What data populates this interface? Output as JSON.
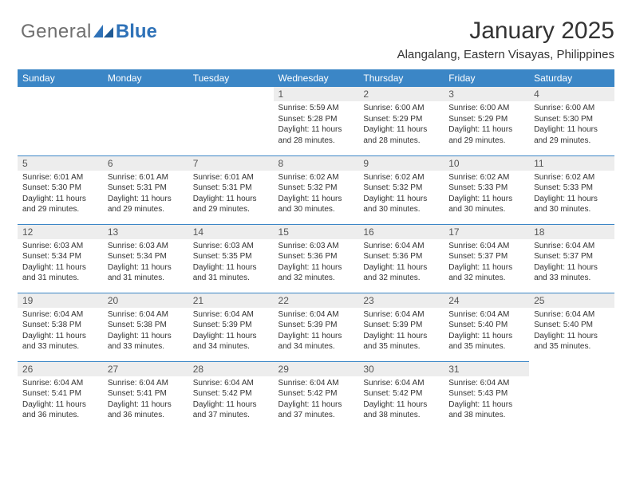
{
  "logo": {
    "text1": "General",
    "text2": "Blue"
  },
  "title": "January 2025",
  "subtitle": "Alangalang, Eastern Visayas, Philippines",
  "colors": {
    "header_bg": "#3b86c6",
    "header_text": "#ffffff",
    "daynum_bg": "#ededed",
    "cell_border": "#3b86c6",
    "logo_gray": "#6f6f6f",
    "logo_blue": "#2f72b8",
    "page_bg": "#ffffff",
    "text": "#333333"
  },
  "headers": [
    "Sunday",
    "Monday",
    "Tuesday",
    "Wednesday",
    "Thursday",
    "Friday",
    "Saturday"
  ],
  "weeks": [
    [
      {
        "day": "",
        "sunrise": "",
        "sunset": "",
        "daylight": ""
      },
      {
        "day": "",
        "sunrise": "",
        "sunset": "",
        "daylight": ""
      },
      {
        "day": "",
        "sunrise": "",
        "sunset": "",
        "daylight": ""
      },
      {
        "day": "1",
        "sunrise": "5:59 AM",
        "sunset": "5:28 PM",
        "daylight": "11 hours and 28 minutes."
      },
      {
        "day": "2",
        "sunrise": "6:00 AM",
        "sunset": "5:29 PM",
        "daylight": "11 hours and 28 minutes."
      },
      {
        "day": "3",
        "sunrise": "6:00 AM",
        "sunset": "5:29 PM",
        "daylight": "11 hours and 29 minutes."
      },
      {
        "day": "4",
        "sunrise": "6:00 AM",
        "sunset": "5:30 PM",
        "daylight": "11 hours and 29 minutes."
      }
    ],
    [
      {
        "day": "5",
        "sunrise": "6:01 AM",
        "sunset": "5:30 PM",
        "daylight": "11 hours and 29 minutes."
      },
      {
        "day": "6",
        "sunrise": "6:01 AM",
        "sunset": "5:31 PM",
        "daylight": "11 hours and 29 minutes."
      },
      {
        "day": "7",
        "sunrise": "6:01 AM",
        "sunset": "5:31 PM",
        "daylight": "11 hours and 29 minutes."
      },
      {
        "day": "8",
        "sunrise": "6:02 AM",
        "sunset": "5:32 PM",
        "daylight": "11 hours and 30 minutes."
      },
      {
        "day": "9",
        "sunrise": "6:02 AM",
        "sunset": "5:32 PM",
        "daylight": "11 hours and 30 minutes."
      },
      {
        "day": "10",
        "sunrise": "6:02 AM",
        "sunset": "5:33 PM",
        "daylight": "11 hours and 30 minutes."
      },
      {
        "day": "11",
        "sunrise": "6:02 AM",
        "sunset": "5:33 PM",
        "daylight": "11 hours and 30 minutes."
      }
    ],
    [
      {
        "day": "12",
        "sunrise": "6:03 AM",
        "sunset": "5:34 PM",
        "daylight": "11 hours and 31 minutes."
      },
      {
        "day": "13",
        "sunrise": "6:03 AM",
        "sunset": "5:34 PM",
        "daylight": "11 hours and 31 minutes."
      },
      {
        "day": "14",
        "sunrise": "6:03 AM",
        "sunset": "5:35 PM",
        "daylight": "11 hours and 31 minutes."
      },
      {
        "day": "15",
        "sunrise": "6:03 AM",
        "sunset": "5:36 PM",
        "daylight": "11 hours and 32 minutes."
      },
      {
        "day": "16",
        "sunrise": "6:04 AM",
        "sunset": "5:36 PM",
        "daylight": "11 hours and 32 minutes."
      },
      {
        "day": "17",
        "sunrise": "6:04 AM",
        "sunset": "5:37 PM",
        "daylight": "11 hours and 32 minutes."
      },
      {
        "day": "18",
        "sunrise": "6:04 AM",
        "sunset": "5:37 PM",
        "daylight": "11 hours and 33 minutes."
      }
    ],
    [
      {
        "day": "19",
        "sunrise": "6:04 AM",
        "sunset": "5:38 PM",
        "daylight": "11 hours and 33 minutes."
      },
      {
        "day": "20",
        "sunrise": "6:04 AM",
        "sunset": "5:38 PM",
        "daylight": "11 hours and 33 minutes."
      },
      {
        "day": "21",
        "sunrise": "6:04 AM",
        "sunset": "5:39 PM",
        "daylight": "11 hours and 34 minutes."
      },
      {
        "day": "22",
        "sunrise": "6:04 AM",
        "sunset": "5:39 PM",
        "daylight": "11 hours and 34 minutes."
      },
      {
        "day": "23",
        "sunrise": "6:04 AM",
        "sunset": "5:39 PM",
        "daylight": "11 hours and 35 minutes."
      },
      {
        "day": "24",
        "sunrise": "6:04 AM",
        "sunset": "5:40 PM",
        "daylight": "11 hours and 35 minutes."
      },
      {
        "day": "25",
        "sunrise": "6:04 AM",
        "sunset": "5:40 PM",
        "daylight": "11 hours and 35 minutes."
      }
    ],
    [
      {
        "day": "26",
        "sunrise": "6:04 AM",
        "sunset": "5:41 PM",
        "daylight": "11 hours and 36 minutes."
      },
      {
        "day": "27",
        "sunrise": "6:04 AM",
        "sunset": "5:41 PM",
        "daylight": "11 hours and 36 minutes."
      },
      {
        "day": "28",
        "sunrise": "6:04 AM",
        "sunset": "5:42 PM",
        "daylight": "11 hours and 37 minutes."
      },
      {
        "day": "29",
        "sunrise": "6:04 AM",
        "sunset": "5:42 PM",
        "daylight": "11 hours and 37 minutes."
      },
      {
        "day": "30",
        "sunrise": "6:04 AM",
        "sunset": "5:42 PM",
        "daylight": "11 hours and 38 minutes."
      },
      {
        "day": "31",
        "sunrise": "6:04 AM",
        "sunset": "5:43 PM",
        "daylight": "11 hours and 38 minutes."
      },
      {
        "day": "",
        "sunrise": "",
        "sunset": "",
        "daylight": ""
      }
    ]
  ],
  "labels": {
    "sunrise": "Sunrise:",
    "sunset": "Sunset:",
    "daylight": "Daylight:"
  }
}
